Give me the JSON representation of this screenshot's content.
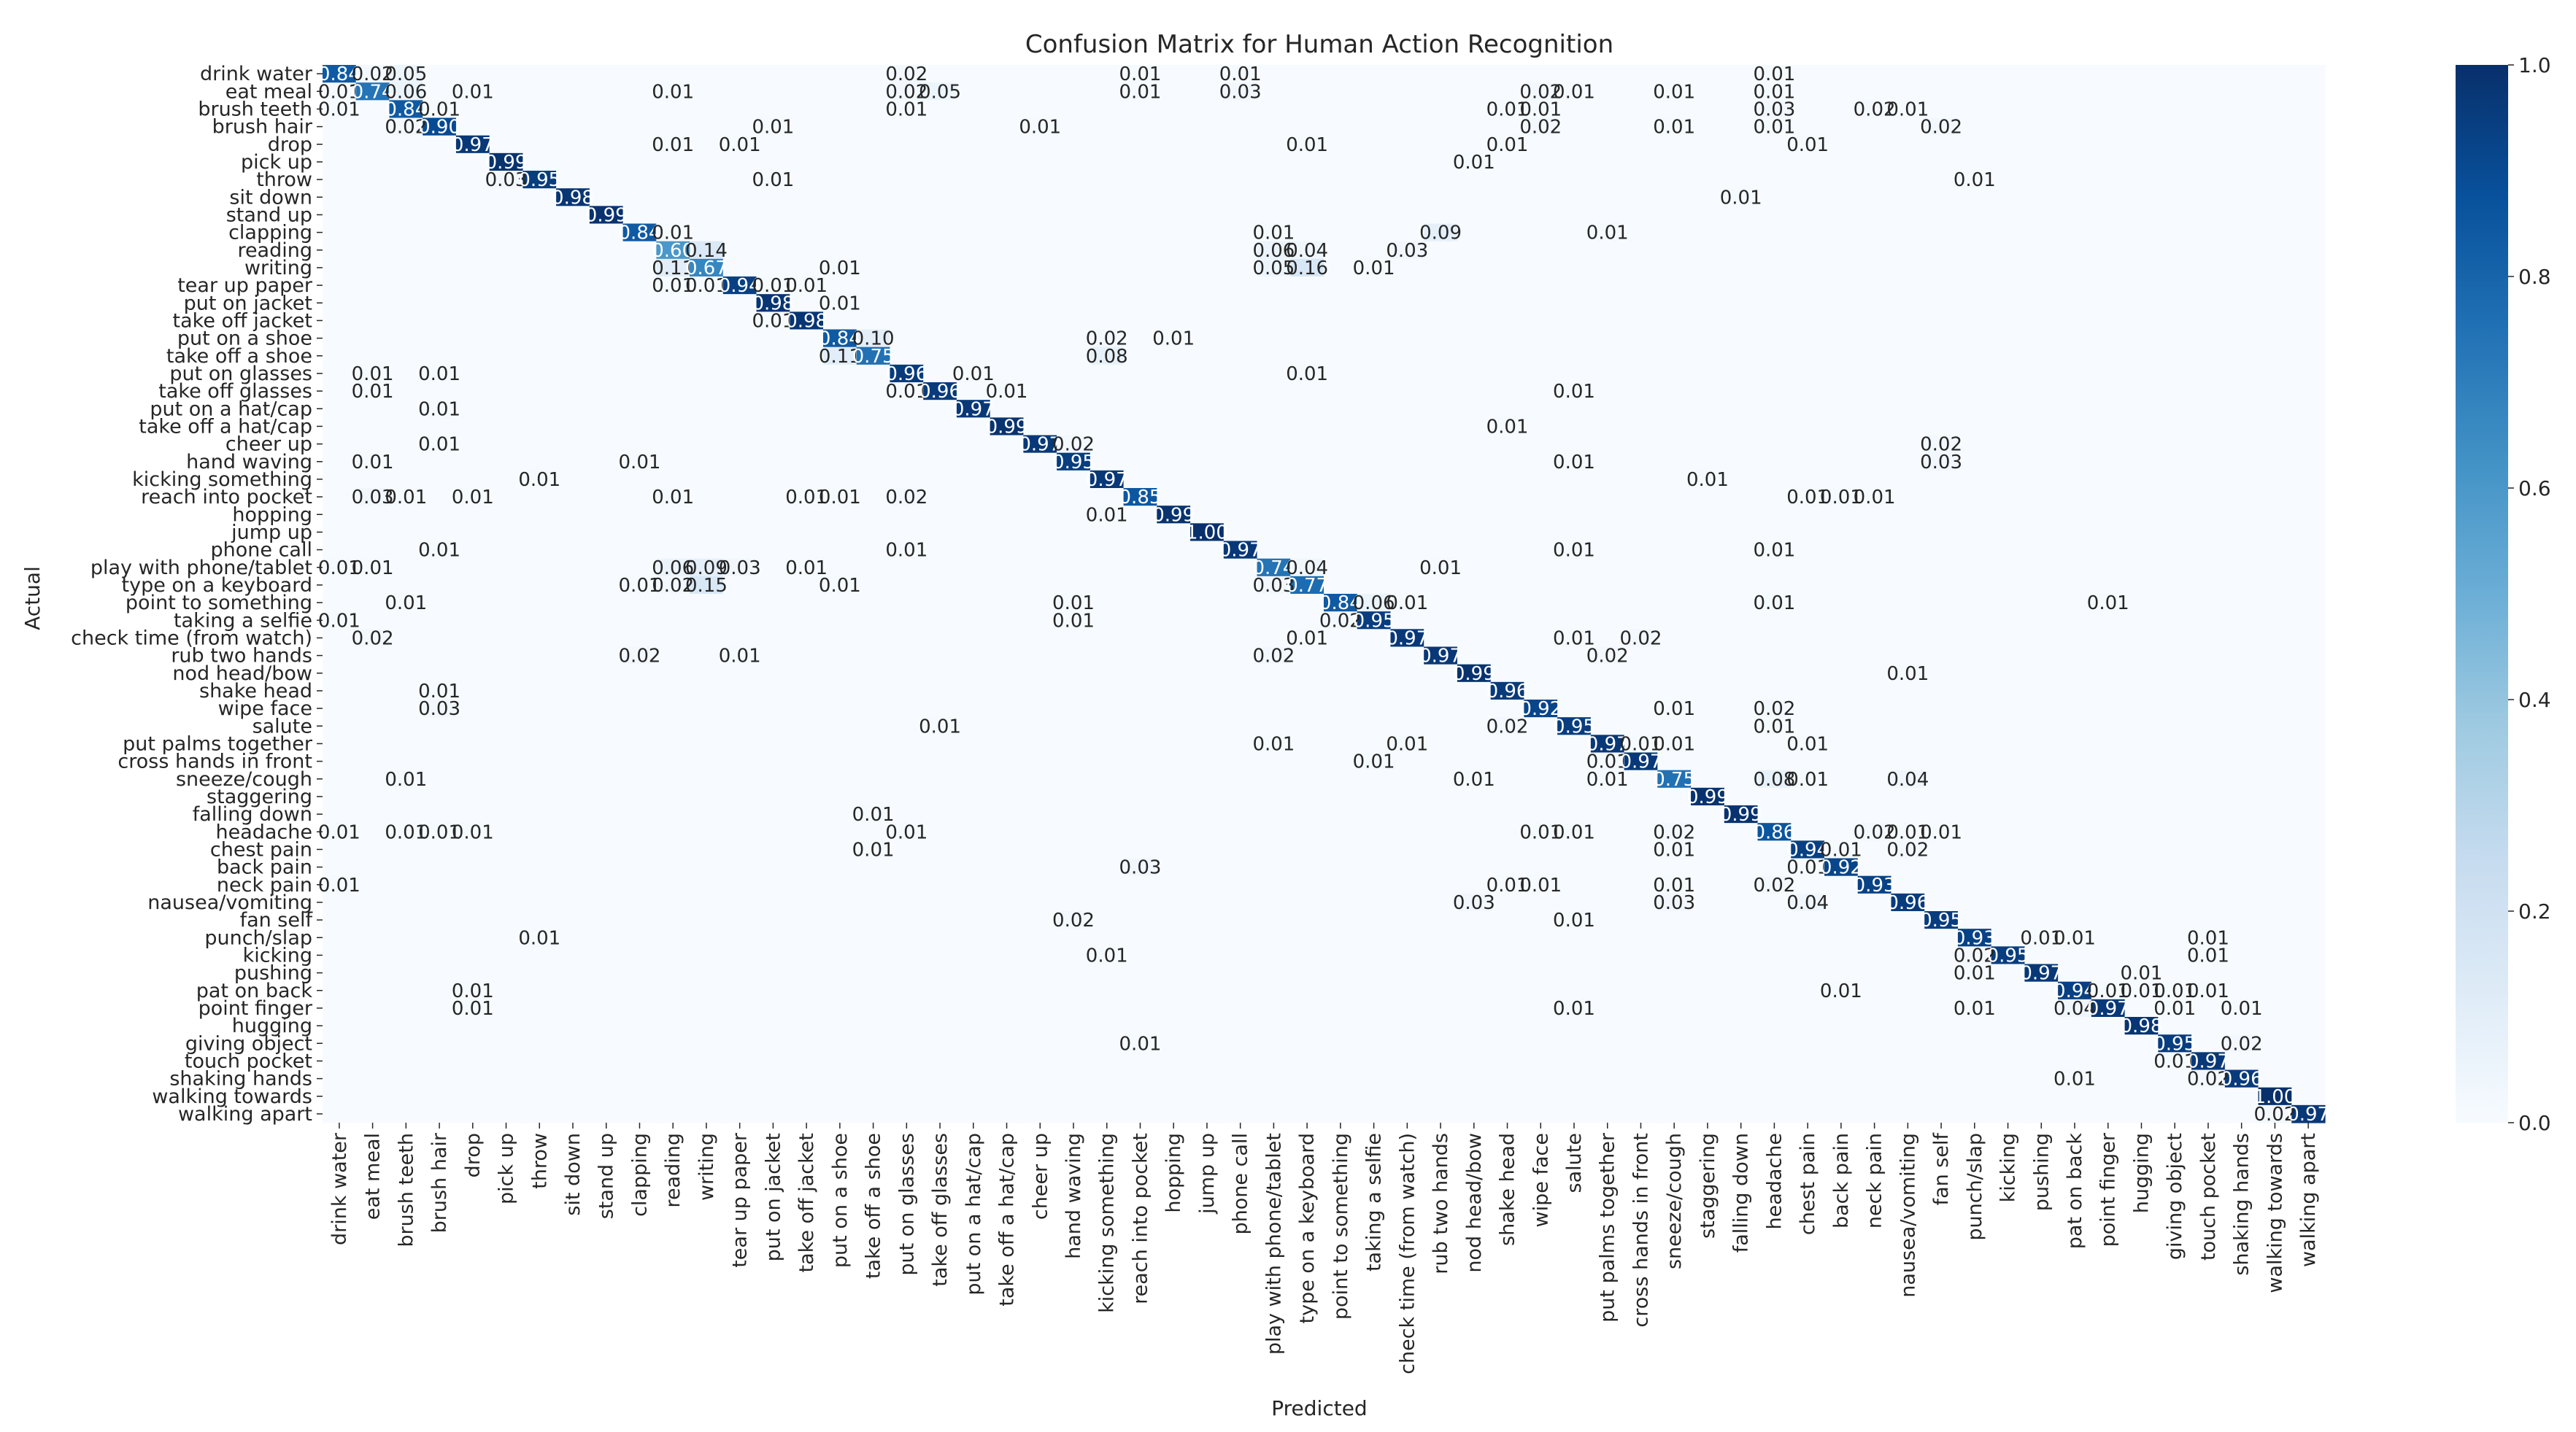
{
  "chart_data": {
    "type": "heatmap",
    "title": "Confusion Matrix for Human Action Recognition",
    "xlabel": "Predicted",
    "ylabel": "Actual",
    "colormap": "Blues",
    "value_range": [
      0,
      1
    ],
    "colorbar_ticks": [
      "0.0",
      "0.2",
      "0.4",
      "0.6",
      "0.8",
      "1.0"
    ],
    "colorbar_tick_values": [
      0,
      0.2,
      0.4,
      0.6,
      0.8,
      1.0
    ],
    "classes": [
      "drink water",
      "eat meal",
      "brush teeth",
      "brush hair",
      "drop",
      "pick up",
      "throw",
      "sit down",
      "stand up",
      "clapping",
      "reading",
      "writing",
      "tear up paper",
      "put on jacket",
      "take off jacket",
      "put on a shoe",
      "take off a shoe",
      "put on glasses",
      "take off glasses",
      "put on a hat/cap",
      "take off a hat/cap",
      "cheer up",
      "hand waving",
      "kicking something",
      "reach into pocket",
      "hopping",
      "jump up",
      "phone call",
      "play with phone/tablet",
      "type on a keyboard",
      "point to something",
      "taking a selfie",
      "check time (from watch)",
      "rub two hands",
      "nod head/bow",
      "shake head",
      "wipe face",
      "salute",
      "put palms together",
      "cross hands in front",
      "sneeze/cough",
      "staggering",
      "falling down",
      "headache",
      "chest pain",
      "back pain",
      "neck pain",
      "nausea/vomiting",
      "fan self",
      "punch/slap",
      "kicking",
      "pushing",
      "pat on back",
      "point finger",
      "hugging",
      "giving object",
      "touch pocket",
      "shaking hands",
      "walking towards",
      "walking apart"
    ],
    "diagonal": [
      0.84,
      0.74,
      0.84,
      0.9,
      0.97,
      0.99,
      0.95,
      0.98,
      0.99,
      0.84,
      0.6,
      0.67,
      0.94,
      0.98,
      0.98,
      0.84,
      0.75,
      0.96,
      0.96,
      0.97,
      0.99,
      0.97,
      0.95,
      0.97,
      0.85,
      0.99,
      1.0,
      0.97,
      0.74,
      0.77,
      0.84,
      0.95,
      0.97,
      0.97,
      0.99,
      0.96,
      0.92,
      0.95,
      0.97,
      0.97,
      0.75,
      0.99,
      0.99,
      0.86,
      0.94,
      0.92,
      0.93,
      0.96,
      0.95,
      0.93,
      0.95,
      0.97,
      0.94,
      0.97,
      0.98,
      0.95,
      0.97,
      0.96,
      1.0,
      0.97
    ],
    "off_diagonal": [
      [
        0,
        1,
        0.02
      ],
      [
        0,
        2,
        0.05
      ],
      [
        0,
        17,
        0.02
      ],
      [
        0,
        24,
        0.01
      ],
      [
        0,
        27,
        0.01
      ],
      [
        0,
        43,
        0.01
      ],
      [
        1,
        0,
        0.01
      ],
      [
        1,
        2,
        0.06
      ],
      [
        1,
        4,
        0.01
      ],
      [
        1,
        10,
        0.01
      ],
      [
        1,
        17,
        0.02
      ],
      [
        1,
        18,
        0.05
      ],
      [
        1,
        24,
        0.01
      ],
      [
        1,
        27,
        0.03
      ],
      [
        1,
        36,
        0.02
      ],
      [
        1,
        37,
        0.01
      ],
      [
        1,
        40,
        0.01
      ],
      [
        1,
        43,
        0.01
      ],
      [
        2,
        0,
        0.01
      ],
      [
        2,
        3,
        0.01
      ],
      [
        2,
        17,
        0.01
      ],
      [
        2,
        35,
        0.01
      ],
      [
        2,
        36,
        0.01
      ],
      [
        2,
        43,
        0.03
      ],
      [
        2,
        46,
        0.02
      ],
      [
        2,
        47,
        0.01
      ],
      [
        3,
        2,
        0.02
      ],
      [
        3,
        13,
        0.01
      ],
      [
        3,
        21,
        0.01
      ],
      [
        3,
        36,
        0.02
      ],
      [
        3,
        40,
        0.01
      ],
      [
        3,
        43,
        0.01
      ],
      [
        3,
        48,
        0.02
      ],
      [
        4,
        10,
        0.01
      ],
      [
        4,
        12,
        0.01
      ],
      [
        4,
        29,
        0.01
      ],
      [
        4,
        35,
        0.01
      ],
      [
        4,
        44,
        0.01
      ],
      [
        5,
        34,
        0.01
      ],
      [
        6,
        5,
        0.03
      ],
      [
        6,
        13,
        0.01
      ],
      [
        6,
        49,
        0.01
      ],
      [
        7,
        42,
        0.01
      ],
      [
        9,
        10,
        0.01
      ],
      [
        9,
        28,
        0.01
      ],
      [
        9,
        33,
        0.09
      ],
      [
        9,
        38,
        0.01
      ],
      [
        10,
        11,
        0.14
      ],
      [
        10,
        28,
        0.06
      ],
      [
        10,
        29,
        0.04
      ],
      [
        10,
        32,
        0.03
      ],
      [
        11,
        10,
        0.11
      ],
      [
        11,
        15,
        0.01
      ],
      [
        11,
        28,
        0.05
      ],
      [
        11,
        29,
        0.16
      ],
      [
        11,
        31,
        0.01
      ],
      [
        12,
        10,
        0.01
      ],
      [
        12,
        11,
        0.01
      ],
      [
        12,
        13,
        0.01
      ],
      [
        12,
        14,
        0.01
      ],
      [
        13,
        15,
        0.01
      ],
      [
        14,
        13,
        0.01
      ],
      [
        15,
        16,
        0.1
      ],
      [
        15,
        23,
        0.02
      ],
      [
        15,
        25,
        0.01
      ],
      [
        16,
        15,
        0.11
      ],
      [
        16,
        23,
        0.08
      ],
      [
        17,
        1,
        0.01
      ],
      [
        17,
        3,
        0.01
      ],
      [
        17,
        19,
        0.01
      ],
      [
        17,
        29,
        0.01
      ],
      [
        18,
        1,
        0.01
      ],
      [
        18,
        17,
        0.01
      ],
      [
        18,
        20,
        0.01
      ],
      [
        18,
        37,
        0.01
      ],
      [
        19,
        3,
        0.01
      ],
      [
        20,
        35,
        0.01
      ],
      [
        21,
        3,
        0.01
      ],
      [
        21,
        22,
        0.02
      ],
      [
        21,
        48,
        0.02
      ],
      [
        22,
        1,
        0.01
      ],
      [
        22,
        9,
        0.01
      ],
      [
        22,
        37,
        0.01
      ],
      [
        22,
        48,
        0.03
      ],
      [
        23,
        6,
        0.01
      ],
      [
        23,
        41,
        0.01
      ],
      [
        24,
        1,
        0.03
      ],
      [
        24,
        2,
        0.01
      ],
      [
        24,
        4,
        0.01
      ],
      [
        24,
        10,
        0.01
      ],
      [
        24,
        14,
        0.01
      ],
      [
        24,
        15,
        0.01
      ],
      [
        24,
        17,
        0.02
      ],
      [
        24,
        44,
        0.01
      ],
      [
        24,
        45,
        0.01
      ],
      [
        24,
        46,
        0.01
      ],
      [
        25,
        23,
        0.01
      ],
      [
        27,
        3,
        0.01
      ],
      [
        27,
        17,
        0.01
      ],
      [
        27,
        37,
        0.01
      ],
      [
        27,
        43,
        0.01
      ],
      [
        28,
        0,
        0.01
      ],
      [
        28,
        1,
        0.01
      ],
      [
        28,
        10,
        0.06
      ],
      [
        28,
        11,
        0.09
      ],
      [
        28,
        12,
        0.03
      ],
      [
        28,
        14,
        0.01
      ],
      [
        28,
        29,
        0.04
      ],
      [
        28,
        33,
        0.01
      ],
      [
        29,
        9,
        0.01
      ],
      [
        29,
        10,
        0.02
      ],
      [
        29,
        11,
        0.15
      ],
      [
        29,
        15,
        0.01
      ],
      [
        29,
        28,
        0.03
      ],
      [
        30,
        2,
        0.01
      ],
      [
        30,
        22,
        0.01
      ],
      [
        30,
        31,
        0.06
      ],
      [
        30,
        32,
        0.01
      ],
      [
        30,
        43,
        0.01
      ],
      [
        30,
        53,
        0.01
      ],
      [
        31,
        0,
        0.01
      ],
      [
        31,
        22,
        0.01
      ],
      [
        31,
        30,
        0.02
      ],
      [
        32,
        1,
        0.02
      ],
      [
        32,
        29,
        0.01
      ],
      [
        32,
        37,
        0.01
      ],
      [
        32,
        39,
        0.02
      ],
      [
        33,
        9,
        0.02
      ],
      [
        33,
        12,
        0.01
      ],
      [
        33,
        28,
        0.02
      ],
      [
        33,
        38,
        0.02
      ],
      [
        34,
        47,
        0.01
      ],
      [
        35,
        3,
        0.01
      ],
      [
        36,
        3,
        0.03
      ],
      [
        36,
        40,
        0.01
      ],
      [
        36,
        43,
        0.02
      ],
      [
        37,
        18,
        0.01
      ],
      [
        37,
        35,
        0.02
      ],
      [
        37,
        43,
        0.01
      ],
      [
        38,
        28,
        0.01
      ],
      [
        38,
        32,
        0.01
      ],
      [
        38,
        39,
        0.01
      ],
      [
        38,
        40,
        0.01
      ],
      [
        38,
        44,
        0.01
      ],
      [
        39,
        31,
        0.01
      ],
      [
        39,
        38,
        0.01
      ],
      [
        40,
        2,
        0.01
      ],
      [
        40,
        34,
        0.01
      ],
      [
        40,
        38,
        0.01
      ],
      [
        40,
        43,
        0.08
      ],
      [
        40,
        44,
        0.01
      ],
      [
        40,
        47,
        0.04
      ],
      [
        42,
        16,
        0.01
      ],
      [
        43,
        0,
        0.01
      ],
      [
        43,
        2,
        0.01
      ],
      [
        43,
        3,
        0.01
      ],
      [
        43,
        4,
        0.01
      ],
      [
        43,
        17,
        0.01
      ],
      [
        43,
        36,
        0.01
      ],
      [
        43,
        37,
        0.01
      ],
      [
        43,
        40,
        0.02
      ],
      [
        43,
        46,
        0.02
      ],
      [
        43,
        47,
        0.01
      ],
      [
        43,
        48,
        0.01
      ],
      [
        44,
        16,
        0.01
      ],
      [
        44,
        40,
        0.01
      ],
      [
        44,
        45,
        0.01
      ],
      [
        44,
        47,
        0.02
      ],
      [
        45,
        24,
        0.03
      ],
      [
        45,
        44,
        0.01
      ],
      [
        46,
        0,
        0.01
      ],
      [
        46,
        35,
        0.01
      ],
      [
        46,
        36,
        0.01
      ],
      [
        46,
        40,
        0.01
      ],
      [
        46,
        43,
        0.02
      ],
      [
        47,
        34,
        0.03
      ],
      [
        47,
        40,
        0.03
      ],
      [
        47,
        44,
        0.04
      ],
      [
        48,
        22,
        0.02
      ],
      [
        48,
        37,
        0.01
      ],
      [
        49,
        6,
        0.01
      ],
      [
        49,
        51,
        0.01
      ],
      [
        49,
        52,
        0.01
      ],
      [
        49,
        56,
        0.01
      ],
      [
        50,
        23,
        0.01
      ],
      [
        50,
        49,
        0.02
      ],
      [
        50,
        56,
        0.01
      ],
      [
        51,
        49,
        0.01
      ],
      [
        51,
        54,
        0.01
      ],
      [
        52,
        4,
        0.01
      ],
      [
        52,
        45,
        0.01
      ],
      [
        52,
        53,
        0.01
      ],
      [
        52,
        54,
        0.01
      ],
      [
        52,
        55,
        0.01
      ],
      [
        52,
        56,
        0.01
      ],
      [
        53,
        4,
        0.01
      ],
      [
        53,
        37,
        0.01
      ],
      [
        53,
        49,
        0.01
      ],
      [
        53,
        52,
        0.04
      ],
      [
        53,
        55,
        0.01
      ],
      [
        53,
        57,
        0.01
      ],
      [
        55,
        24,
        0.01
      ],
      [
        55,
        57,
        0.02
      ],
      [
        56,
        55,
        0.01
      ],
      [
        57,
        52,
        0.01
      ],
      [
        57,
        56,
        0.02
      ],
      [
        59,
        58,
        0.02
      ]
    ]
  }
}
